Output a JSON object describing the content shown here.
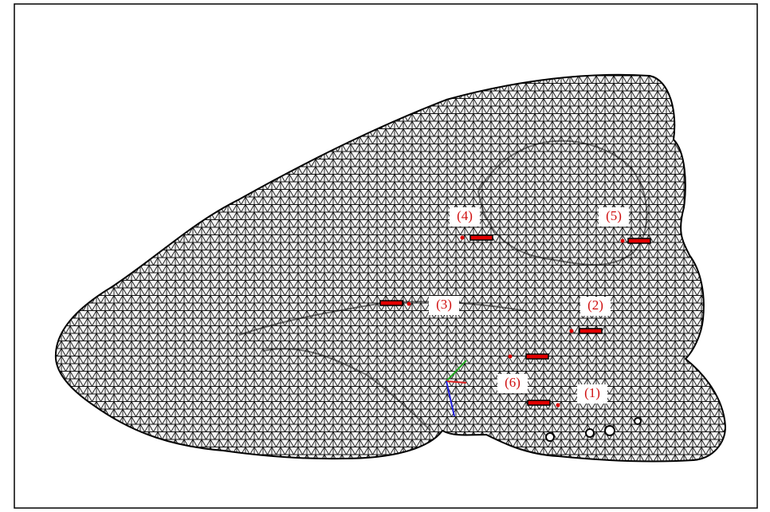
{
  "landmarks": [
    {
      "label": "(1)"
    },
    {
      "label": "(2)"
    },
    {
      "label": "(3)"
    },
    {
      "label": "(4)"
    },
    {
      "label": "(5)"
    },
    {
      "label": "(6)"
    }
  ]
}
